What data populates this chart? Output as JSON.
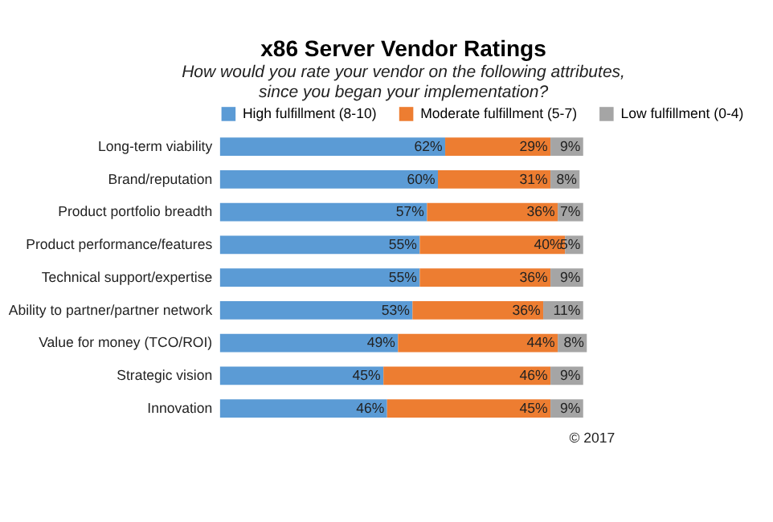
{
  "chart_data": {
    "type": "bar",
    "orientation": "horizontal",
    "stacked": true,
    "title": "x86 Server Vendor Ratings",
    "subtitle": "How would you rate your vendor on the following attributes, since you began your implementation?",
    "categories": [
      "Long-term viability",
      "Brand/reputation",
      "Product portfolio breadth",
      "Product performance/features",
      "Technical support/expertise",
      "Ability to partner/partner network",
      "Value for money (TCO/ROI)",
      "Strategic vision",
      "Innovation"
    ],
    "series": [
      {
        "name": "High fulfillment (8-10)",
        "color": "#5b9bd5",
        "values": [
          62,
          60,
          57,
          55,
          55,
          53,
          49,
          45,
          46
        ],
        "value_labels": [
          "62%",
          "60%",
          "57%",
          "55%",
          "55%",
          "53%",
          "49%",
          "45%",
          "46%"
        ]
      },
      {
        "name": "Moderate fulfillment (5-7)",
        "color": "#ed7d31",
        "values": [
          29,
          31,
          36,
          40,
          36,
          36,
          44,
          46,
          45
        ],
        "value_labels": [
          "29%",
          "31%",
          "36%",
          "40%",
          "36%",
          "36%",
          "44%",
          "46%",
          "45%"
        ]
      },
      {
        "name": "Low fulfillment (0-4)",
        "color": "#a5a5a5",
        "values": [
          9,
          8,
          7,
          5,
          9,
          11,
          8,
          9,
          9
        ],
        "value_labels": [
          "9%",
          "8%",
          "7%",
          "5%",
          "9%",
          "11%",
          "8%",
          "9%",
          "9%"
        ]
      }
    ],
    "legend": "top",
    "annotations": [
      "© 2017"
    ]
  }
}
